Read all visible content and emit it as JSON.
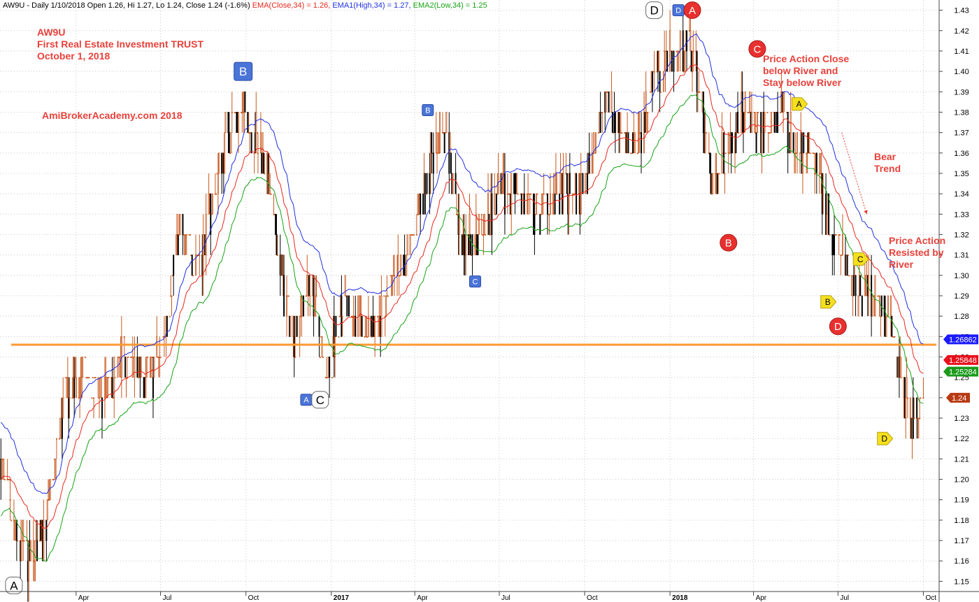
{
  "header": {
    "prefix": "AW9U - Daily 1/10/2018 Open 1.26, Hi 1.27, Lo 1.24, Close 1.24 (-1.6%)",
    "ema_close": "EMA(Close,34) = 1.26,",
    "ema_high": "EMA1(High,34) = 1.27,",
    "ema_low": "EMA2(Low,34) = 1.25"
  },
  "annotations": {
    "title_block": "AW9U\nFirst Real Estate Investment TRUST\nOctober 1, 2018",
    "site": "AmiBrokerAcademy.com  2018",
    "river_note": "Price Action Close\nbelow River and\nStay below River",
    "bear_trend": "Bear\nTrend",
    "resisted": "Price Action\nResisted by\nRiver"
  },
  "colors": {
    "ema_close": "#e8281e",
    "ema_high": "#2030e0",
    "ema_low": "#17a317",
    "support_line": "#ff9933",
    "up_candle": "#c8581e",
    "down_candle": "#000000",
    "annotation_text": "#e8413b",
    "marker_red": "#e8302e",
    "marker_blue": "#4a74d8",
    "marker_yellow": "#f5e01e",
    "label_blue_bg": "#1a1aff",
    "label_red_bg": "#e8101a",
    "label_green_bg": "#1a9a1a",
    "label_close_bg": "#b83a12"
  },
  "chart_data": {
    "type": "candlestick",
    "ylim": [
      1.145,
      1.435
    ],
    "y_ticks": [
      "1.15",
      "1.16",
      "1.17",
      "1.18",
      "1.19",
      "1.20",
      "1.21",
      "1.22",
      "1.23",
      "1.24",
      "1.25",
      "1.26",
      "1.27",
      "1.28",
      "1.29",
      "1.30",
      "1.31",
      "1.32",
      "1.33",
      "1.34",
      "1.35",
      "1.36",
      "1.37",
      "1.38",
      "1.39",
      "1.40",
      "1.41",
      "1.42",
      "1.43"
    ],
    "x_ticks": [
      {
        "label": "Apr",
        "date": "2016-04-01",
        "bold": false
      },
      {
        "label": "Jul",
        "date": "2016-07-01",
        "bold": false
      },
      {
        "label": "Oct",
        "date": "2016-10-01",
        "bold": false
      },
      {
        "label": "2017",
        "date": "2017-01-01",
        "bold": true
      },
      {
        "label": "Apr",
        "date": "2017-04-01",
        "bold": false
      },
      {
        "label": "Jul",
        "date": "2017-07-01",
        "bold": false
      },
      {
        "label": "Oct",
        "date": "2017-10-01",
        "bold": false
      },
      {
        "label": "2018",
        "date": "2018-01-01",
        "bold": true
      },
      {
        "label": "Apr",
        "date": "2018-04-01",
        "bold": false
      },
      {
        "label": "Jul",
        "date": "2018-07-01",
        "bold": false
      },
      {
        "label": "Oct",
        "date": "2018-10-01",
        "bold": false
      }
    ],
    "x_range": [
      "2016-01-10",
      "2018-10-18"
    ],
    "price_path": [
      {
        "date": "2016-01-10",
        "price": 1.21
      },
      {
        "date": "2016-01-28",
        "price": 1.17
      },
      {
        "date": "2016-02-12",
        "price": 1.16
      },
      {
        "date": "2016-03-01",
        "price": 1.18
      },
      {
        "date": "2016-03-20",
        "price": 1.24
      },
      {
        "date": "2016-04-10",
        "price": 1.25
      },
      {
        "date": "2016-05-01",
        "price": 1.24
      },
      {
        "date": "2016-05-25",
        "price": 1.26
      },
      {
        "date": "2016-06-15",
        "price": 1.25
      },
      {
        "date": "2016-07-01",
        "price": 1.26
      },
      {
        "date": "2016-07-20",
        "price": 1.32
      },
      {
        "date": "2016-08-15",
        "price": 1.31
      },
      {
        "date": "2016-09-10",
        "price": 1.37
      },
      {
        "date": "2016-10-01",
        "price": 1.38
      },
      {
        "date": "2016-10-20",
        "price": 1.36
      },
      {
        "date": "2016-11-05",
        "price": 1.31
      },
      {
        "date": "2016-11-20",
        "price": 1.27
      },
      {
        "date": "2016-12-10",
        "price": 1.3
      },
      {
        "date": "2016-12-25",
        "price": 1.25
      },
      {
        "date": "2017-01-15",
        "price": 1.29
      },
      {
        "date": "2017-02-10",
        "price": 1.27
      },
      {
        "date": "2017-03-05",
        "price": 1.29
      },
      {
        "date": "2017-03-25",
        "price": 1.31
      },
      {
        "date": "2017-04-20",
        "price": 1.36
      },
      {
        "date": "2017-05-05",
        "price": 1.37
      },
      {
        "date": "2017-05-20",
        "price": 1.32
      },
      {
        "date": "2017-06-10",
        "price": 1.32
      },
      {
        "date": "2017-07-01",
        "price": 1.34
      },
      {
        "date": "2017-07-20",
        "price": 1.34
      },
      {
        "date": "2017-08-10",
        "price": 1.33
      },
      {
        "date": "2017-09-05",
        "price": 1.34
      },
      {
        "date": "2017-09-25",
        "price": 1.34
      },
      {
        "date": "2017-10-10",
        "price": 1.36
      },
      {
        "date": "2017-10-25",
        "price": 1.39
      },
      {
        "date": "2017-11-10",
        "price": 1.37
      },
      {
        "date": "2017-11-25",
        "price": 1.36
      },
      {
        "date": "2017-12-15",
        "price": 1.4
      },
      {
        "date": "2018-01-05",
        "price": 1.41
      },
      {
        "date": "2018-01-25",
        "price": 1.41
      },
      {
        "date": "2018-02-05",
        "price": 1.38
      },
      {
        "date": "2018-02-15",
        "price": 1.34
      },
      {
        "date": "2018-03-01",
        "price": 1.36
      },
      {
        "date": "2018-03-20",
        "price": 1.38
      },
      {
        "date": "2018-04-10",
        "price": 1.37
      },
      {
        "date": "2018-04-30",
        "price": 1.38
      },
      {
        "date": "2018-05-20",
        "price": 1.36
      },
      {
        "date": "2018-06-05",
        "price": 1.36
      },
      {
        "date": "2018-06-20",
        "price": 1.33
      },
      {
        "date": "2018-07-05",
        "price": 1.31
      },
      {
        "date": "2018-07-20",
        "price": 1.29
      },
      {
        "date": "2018-08-10",
        "price": 1.29
      },
      {
        "date": "2018-08-25",
        "price": 1.28
      },
      {
        "date": "2018-09-10",
        "price": 1.24
      },
      {
        "date": "2018-09-22",
        "price": 1.23
      },
      {
        "date": "2018-10-01",
        "price": 1.24
      }
    ],
    "support_line": {
      "price": 1.266,
      "from": "2016-01-22",
      "to": "2018-10-15"
    },
    "ema_period": 34,
    "right_labels": [
      {
        "text": "1.26862",
        "price": 1.2686,
        "color_key": "label_blue_bg"
      },
      {
        "text": "1.25848",
        "price": 1.2585,
        "color_key": "label_red_bg"
      },
      {
        "text": "1.25284",
        "price": 1.2528,
        "color_key": "label_green_bg"
      },
      {
        "text": "1.24",
        "price": 1.24,
        "color_key": "label_close_bg"
      }
    ],
    "markers": [
      {
        "text": "A",
        "style": "white-round",
        "date": "2016-01-25",
        "price": 1.148
      },
      {
        "text": "B",
        "style": "blue-square-large",
        "date": "2016-09-28",
        "price": 1.4
      },
      {
        "text": "A",
        "style": "blue-square",
        "date": "2016-12-05",
        "price": 1.239
      },
      {
        "text": "C",
        "style": "white-round",
        "date": "2016-12-20",
        "price": 1.239
      },
      {
        "text": "B",
        "style": "blue-square",
        "date": "2017-04-15",
        "price": 1.381
      },
      {
        "text": "C",
        "style": "blue-square",
        "date": "2017-06-05",
        "price": 1.297
      },
      {
        "text": "D",
        "style": "white-round",
        "date": "2017-12-15",
        "price": 1.43
      },
      {
        "text": "D",
        "style": "blue-square",
        "date": "2018-01-10",
        "price": 1.43
      },
      {
        "text": "A",
        "style": "red-circle",
        "date": "2018-01-25",
        "price": 1.43
      },
      {
        "text": "C",
        "style": "red-circle",
        "date": "2018-04-05",
        "price": 1.411
      },
      {
        "text": "B",
        "style": "red-circle",
        "date": "2018-03-05",
        "price": 1.316
      },
      {
        "text": "D",
        "style": "red-circle",
        "date": "2018-07-01",
        "price": 1.275
      },
      {
        "text": "A",
        "style": "yellow-tag",
        "date": "2018-05-20",
        "price": 1.384
      },
      {
        "text": "B",
        "style": "yellow-tag",
        "date": "2018-06-20",
        "price": 1.287
      },
      {
        "text": "C",
        "style": "yellow-tag",
        "date": "2018-07-25",
        "price": 1.308
      },
      {
        "text": "D",
        "style": "yellow-tag",
        "date": "2018-08-20",
        "price": 1.22
      }
    ],
    "bear_arrow": {
      "from": {
        "date": "2018-07-05",
        "price": 1.37
      },
      "to": {
        "date": "2018-08-01",
        "price": 1.33
      }
    }
  }
}
